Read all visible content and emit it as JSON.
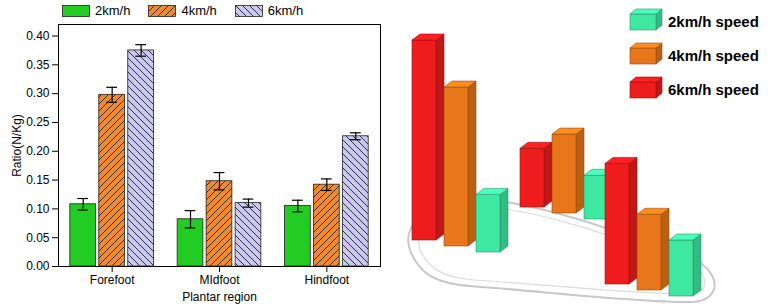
{
  "chart_data": [
    {
      "type": "bar",
      "categories": [
        "Forefoot",
        "MIdfoot",
        "Hindfoot"
      ],
      "x_label": "Plantar region",
      "y_label": "Ratio(N/Kg)",
      "ylim": [
        0,
        0.42
      ],
      "yticks": [
        {
          "value": 0,
          "label": "0.00"
        },
        {
          "value": 0.05,
          "label": "0.05"
        },
        {
          "value": 0.1,
          "label": "0.10"
        },
        {
          "value": 0.15,
          "label": "0.15"
        },
        {
          "value": 0.2,
          "label": "0.20"
        },
        {
          "value": 0.25,
          "label": "0.25"
        },
        {
          "value": 0.3,
          "label": "0.30"
        },
        {
          "value": 0.35,
          "label": "0.35"
        },
        {
          "value": 0.4,
          "label": "0.40"
        }
      ],
      "legend": "top",
      "series": [
        {
          "name": "2km/h",
          "color": "#22cc22",
          "values": [
            0.108,
            0.082,
            0.105
          ],
          "errors": [
            0.01,
            0.015,
            0.01
          ]
        },
        {
          "name": "4km/h",
          "color": "#f08a2c",
          "values": [
            0.298,
            0.148,
            0.142
          ],
          "errors": [
            0.013,
            0.015,
            0.01
          ]
        },
        {
          "name": "6km/h",
          "color": "#c8c8f0",
          "values": [
            0.375,
            0.11,
            0.226
          ],
          "errors": [
            0.01,
            0.007,
            0.006
          ]
        }
      ]
    },
    {
      "type": "bar3d",
      "legend": "top-right",
      "series": [
        {
          "name": "2km/h speed",
          "color": "#3fe8a0",
          "values": [
            0.108,
            0.082,
            0.105
          ]
        },
        {
          "name": "4km/h speed",
          "color": "#e8761a",
          "values": [
            0.298,
            0.148,
            0.142
          ]
        },
        {
          "name": "6km/h speed",
          "color": "#ee1c1c",
          "values": [
            0.375,
            0.11,
            0.226
          ]
        }
      ]
    }
  ]
}
